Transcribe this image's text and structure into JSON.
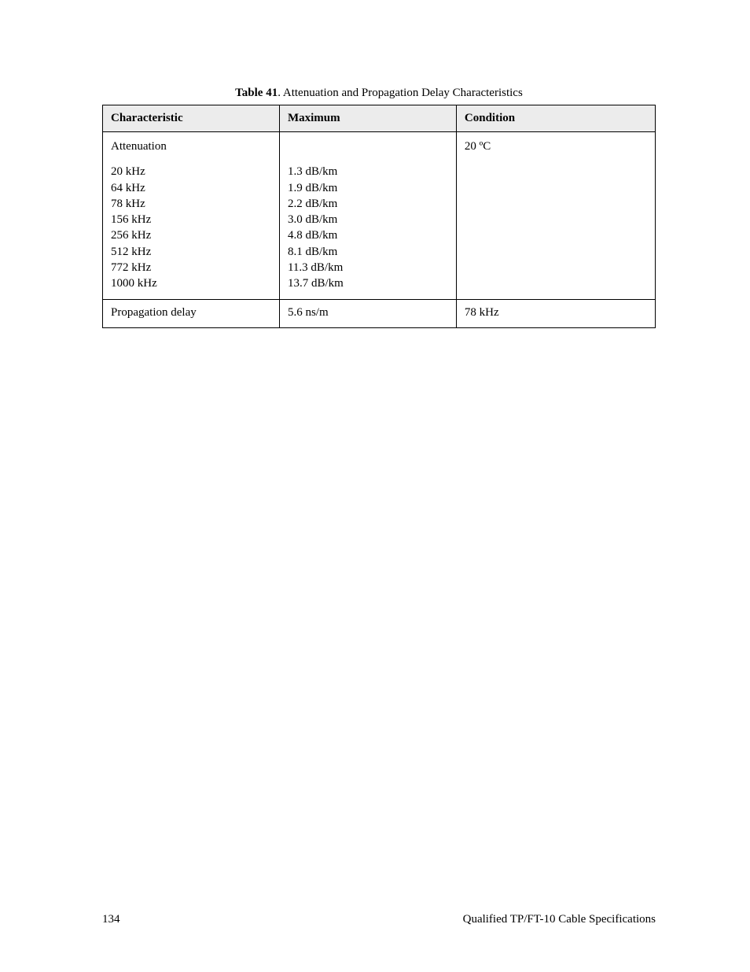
{
  "caption": {
    "label": "Table 41",
    "title": ". Attenuation and Propagation Delay Characteristics"
  },
  "table": {
    "headers": {
      "characteristic": "Characteristic",
      "maximum": "Maximum",
      "condition": "Condition"
    },
    "attenuation": {
      "label": "Attenuation",
      "condition": "20 ºC",
      "rows": [
        {
          "freq": "20 kHz",
          "value": "1.3 dB/km"
        },
        {
          "freq": "64 kHz",
          "value": "1.9 dB/km"
        },
        {
          "freq": "78 kHz",
          "value": "2.2 dB/km"
        },
        {
          "freq": "156 kHz",
          "value": "3.0 dB/km"
        },
        {
          "freq": "256 kHz",
          "value": "4.8 dB/km"
        },
        {
          "freq": "512 kHz",
          "value": "8.1 dB/km"
        },
        {
          "freq": "772 kHz",
          "value": "11.3 dB/km"
        },
        {
          "freq": "1000 kHz",
          "value": "13.7 dB/km"
        }
      ]
    },
    "propagation": {
      "label": "Propagation delay",
      "value": "5.6 ns/m",
      "condition": "78 kHz"
    }
  },
  "footer": {
    "page_number": "134",
    "section_title": "Qualified TP/FT-10 Cable Specifications"
  },
  "colors": {
    "header_bg": "#ececec",
    "border": "#000000",
    "text": "#000000",
    "page_bg": "#ffffff"
  },
  "typography": {
    "base_font_size_pt": 11,
    "font_family": "Century Schoolbook serif"
  }
}
